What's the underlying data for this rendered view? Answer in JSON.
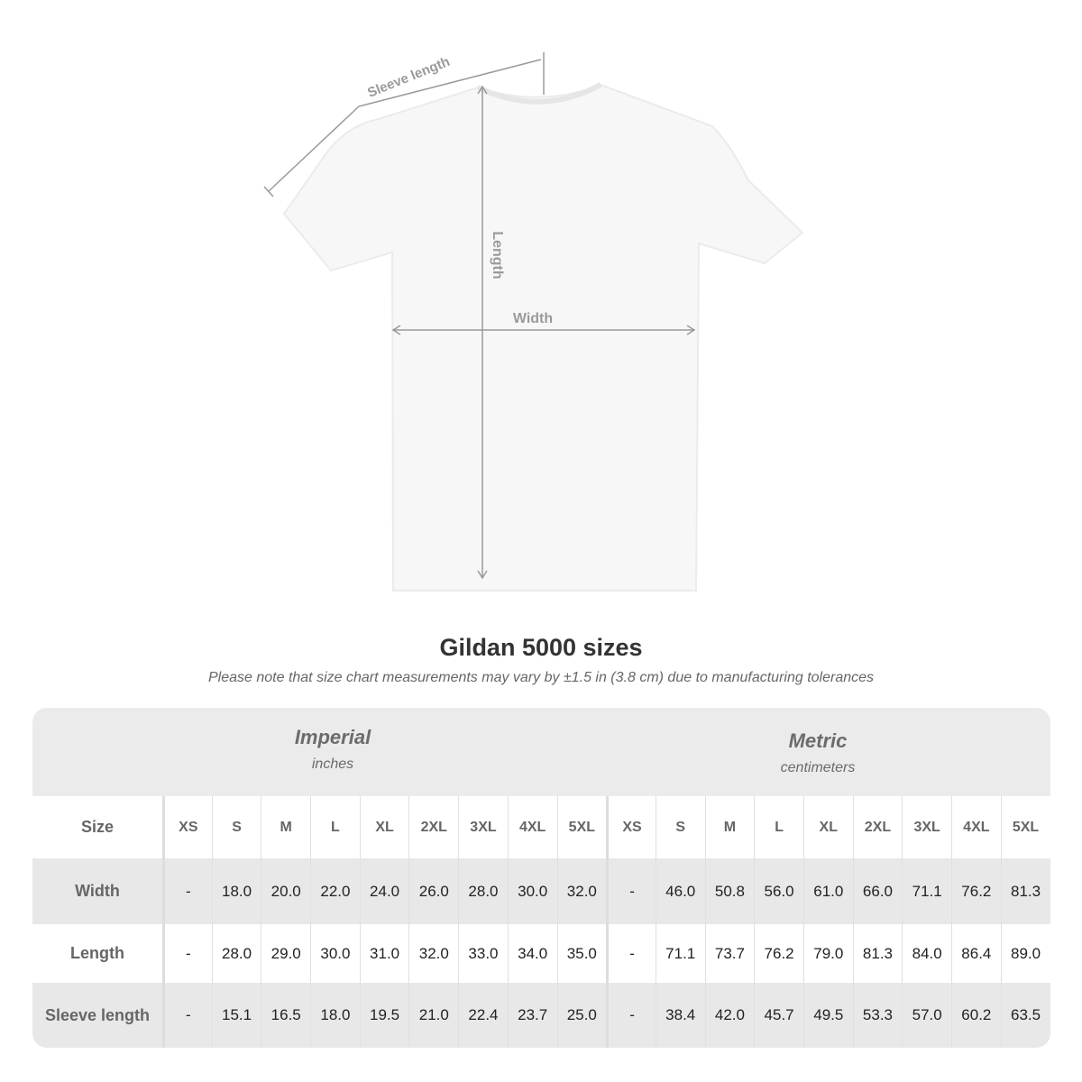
{
  "diagram": {
    "sleeve_label": "Sleeve length",
    "length_label": "Length",
    "width_label": "Width"
  },
  "title": "Gildan 5000 sizes",
  "note": "Please note that size chart measurements may vary by ±1.5 in (3.8 cm) due to manufacturing tolerances",
  "imperial": {
    "name": "Imperial",
    "unit": "inches"
  },
  "metric": {
    "name": "Metric",
    "unit": "centimeters"
  },
  "sizes": [
    "XS",
    "S",
    "M",
    "L",
    "XL",
    "2XL",
    "3XL",
    "4XL",
    "5XL"
  ],
  "size_label": "Size",
  "rows": [
    {
      "label": "Width",
      "imperial": [
        "-",
        "18.0",
        "20.0",
        "22.0",
        "24.0",
        "26.0",
        "28.0",
        "30.0",
        "32.0"
      ],
      "metric": [
        "-",
        "46.0",
        "50.8",
        "56.0",
        "61.0",
        "66.0",
        "71.1",
        "76.2",
        "81.3"
      ]
    },
    {
      "label": "Length",
      "imperial": [
        "-",
        "28.0",
        "29.0",
        "30.0",
        "31.0",
        "32.0",
        "33.0",
        "34.0",
        "35.0"
      ],
      "metric": [
        "-",
        "71.1",
        "73.7",
        "76.2",
        "79.0",
        "81.3",
        "84.0",
        "86.4",
        "89.0"
      ]
    },
    {
      "label": "Sleeve length",
      "imperial": [
        "-",
        "15.1",
        "16.5",
        "18.0",
        "19.5",
        "21.0",
        "22.4",
        "23.7",
        "25.0"
      ],
      "metric": [
        "-",
        "38.4",
        "42.0",
        "45.7",
        "49.5",
        "53.3",
        "57.0",
        "60.2",
        "63.5"
      ]
    }
  ]
}
